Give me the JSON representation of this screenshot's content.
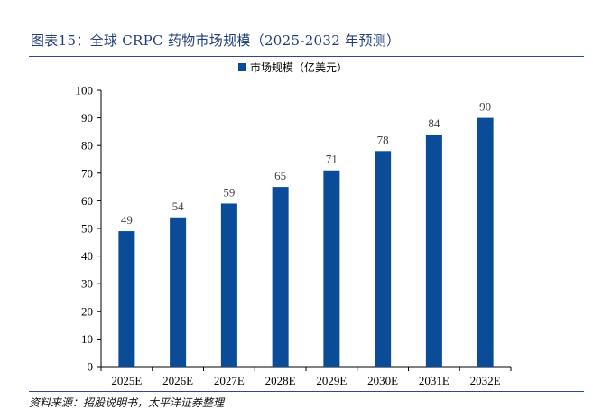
{
  "figure_title": "图表15：全球 CRPC 药物市场规模（2025-2032 年预测）",
  "source_note": "资料来源：招股说明书，太平洋证券整理",
  "colors": {
    "bar": "#0a4c97",
    "title": "#1f3f7a",
    "rule": "#2a4a8a"
  },
  "chart_data": {
    "type": "bar",
    "categories": [
      "2025E",
      "2026E",
      "2027E",
      "2028E",
      "2029E",
      "2030E",
      "2031E",
      "2032E"
    ],
    "series": [
      {
        "name": "市场规模（亿美元）",
        "values": [
          49,
          54,
          59,
          65,
          71,
          78,
          84,
          90
        ]
      }
    ],
    "ylim": [
      0,
      100
    ],
    "yticks": [
      0,
      10,
      20,
      30,
      40,
      50,
      60,
      70,
      80,
      90,
      100
    ],
    "legend": "top-center",
    "grid": false
  }
}
